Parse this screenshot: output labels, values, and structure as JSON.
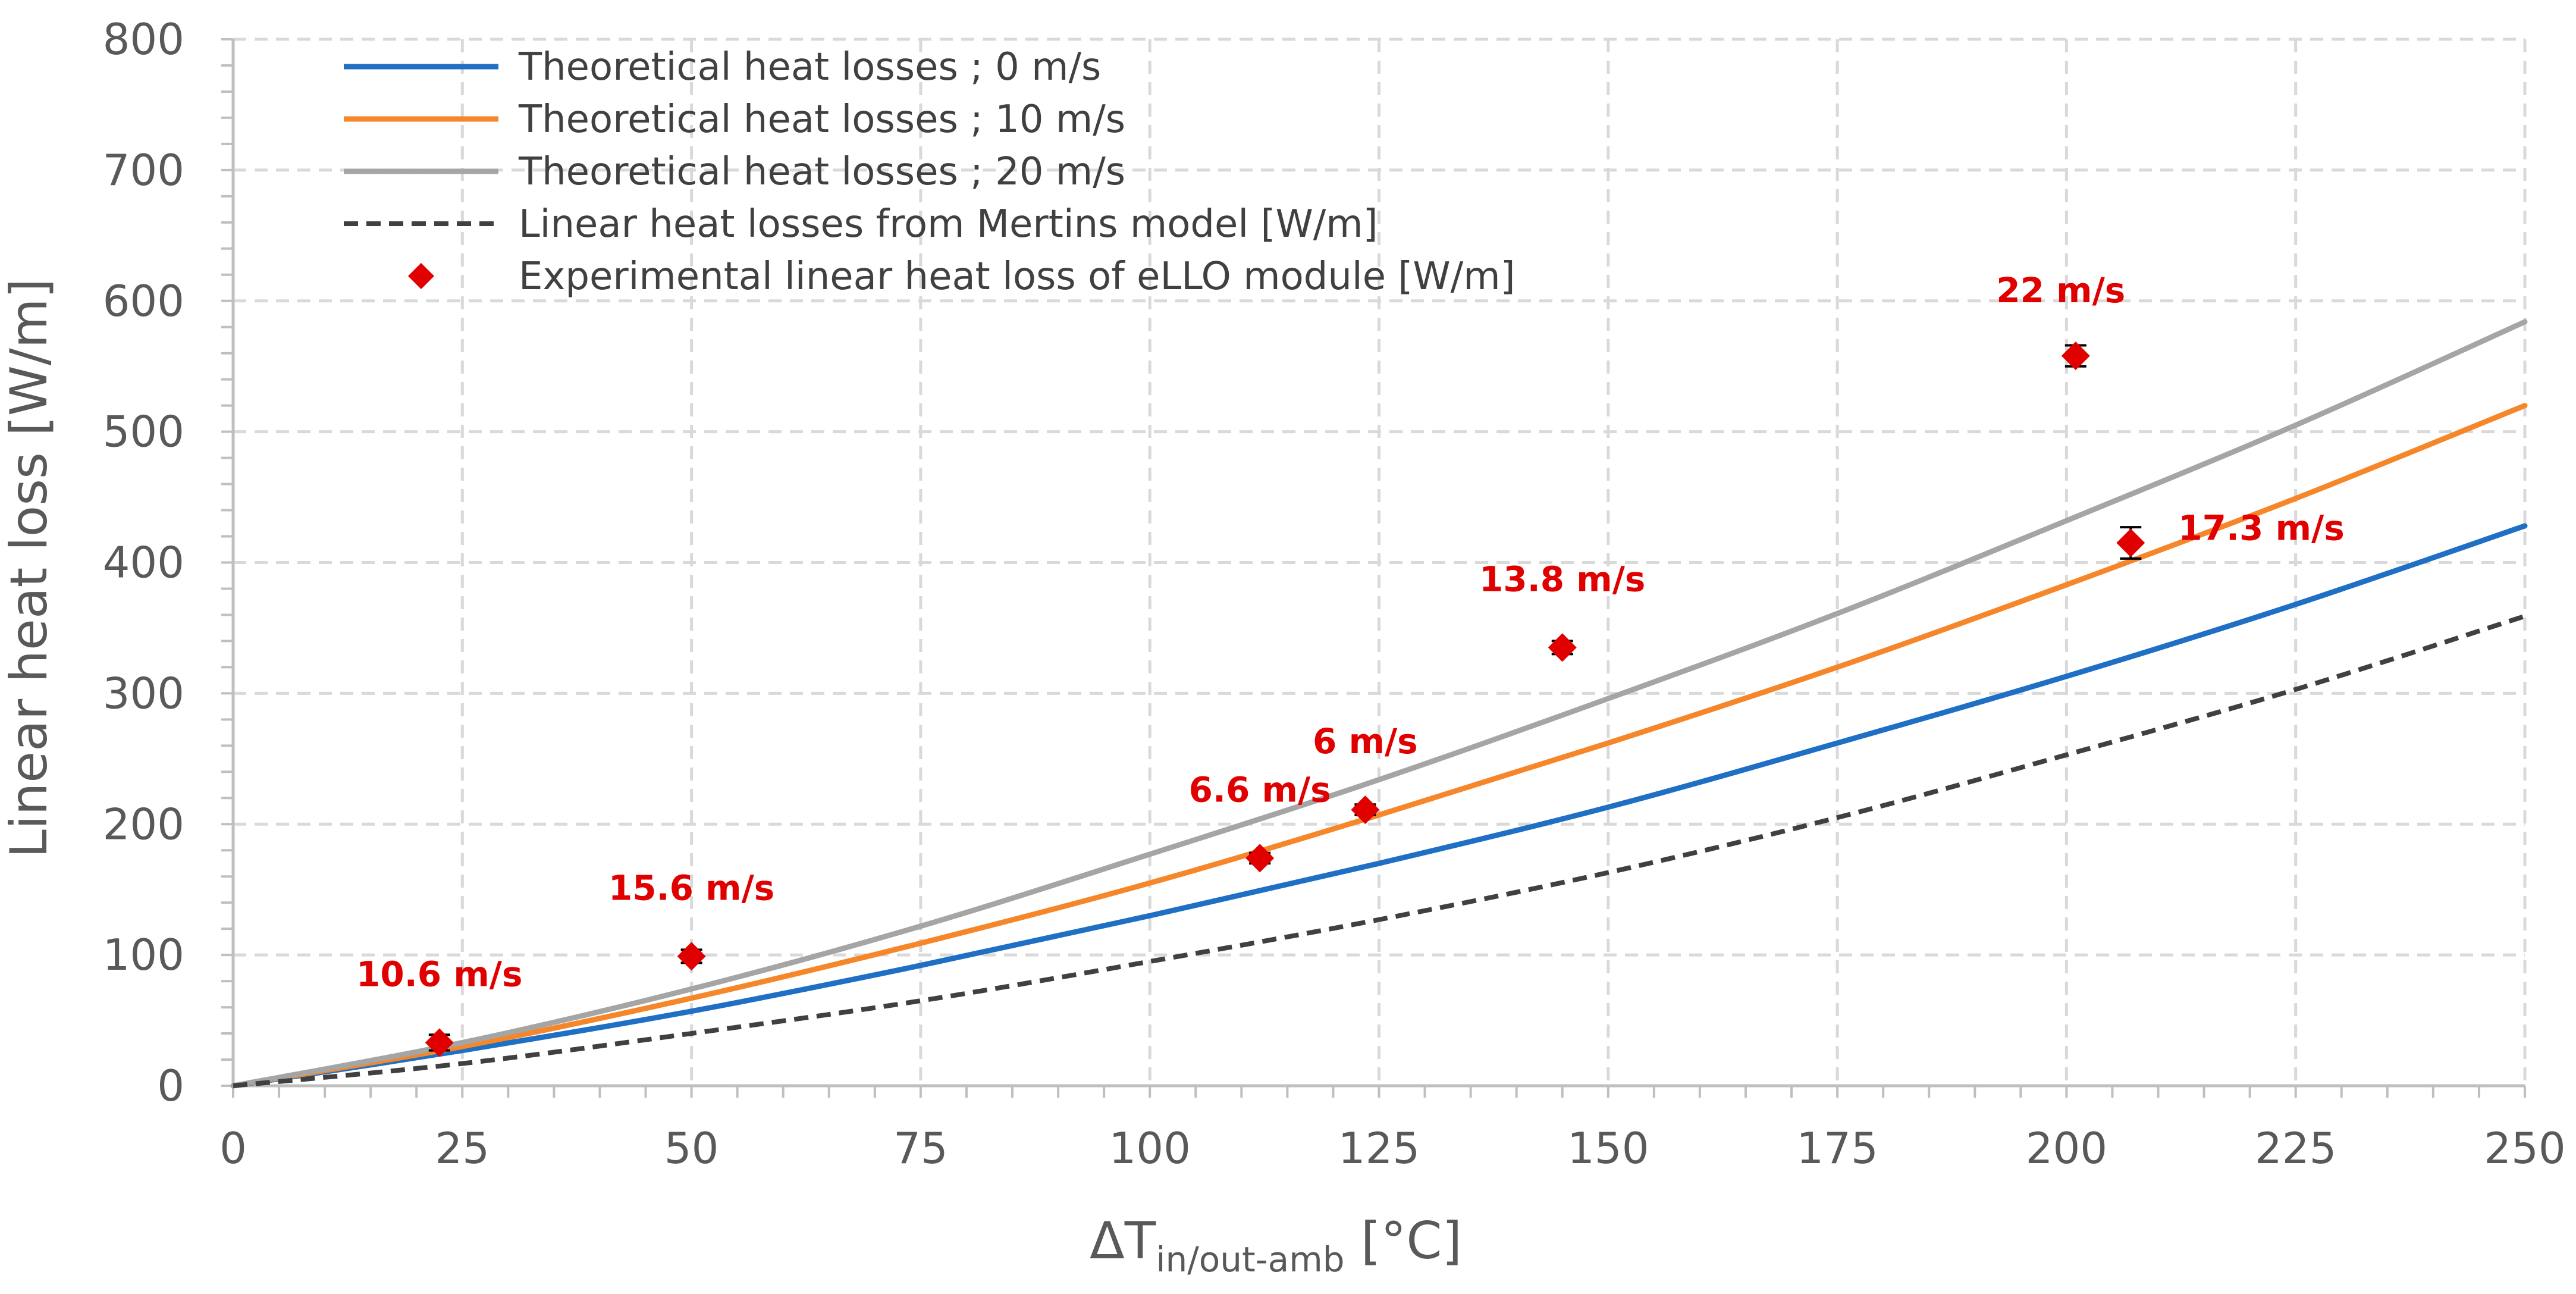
{
  "chart_data": {
    "type": "line",
    "title": "",
    "xlabel": {
      "main": "ΔT",
      "sub": "in/out-amb",
      "unit": " [°C]"
    },
    "ylabel": "Linear heat loss [W/m]",
    "xlim": [
      0,
      250
    ],
    "ylim": [
      0,
      800
    ],
    "x_ticks": [
      0,
      25,
      50,
      75,
      100,
      125,
      150,
      175,
      200,
      225,
      250
    ],
    "y_ticks": [
      0,
      100,
      200,
      300,
      400,
      500,
      600,
      700,
      800
    ],
    "grid": true,
    "legend_position": "top-left",
    "series": [
      {
        "name": "Theoretical heat losses ; 0 m/s",
        "color": "#1f6fc5",
        "style": "solid",
        "x": [
          0,
          25,
          50,
          75,
          100,
          125,
          150,
          175,
          200,
          225,
          250
        ],
        "y": [
          0,
          27,
          57,
          92,
          130,
          170,
          213,
          262,
          313,
          368,
          428
        ]
      },
      {
        "name": "Theoretical heat losses ; 10 m/s",
        "color": "#f5872a",
        "style": "solid",
        "x": [
          0,
          25,
          50,
          75,
          100,
          125,
          150,
          175,
          200,
          225,
          250
        ],
        "y": [
          0,
          30,
          67,
          109,
          155,
          207,
          262,
          320,
          383,
          449,
          520
        ]
      },
      {
        "name": "Theoretical heat losses ; 20 m/s",
        "color": "#a5a5a5",
        "style": "solid",
        "x": [
          0,
          25,
          50,
          75,
          100,
          125,
          150,
          175,
          200,
          225,
          250
        ],
        "y": [
          0,
          33,
          74,
          122,
          177,
          234,
          296,
          361,
          432,
          505,
          584
        ]
      },
      {
        "name": "Linear heat losses from Mertins model [W/m]",
        "color": "#404040",
        "style": "dashed",
        "x": [
          0,
          25,
          50,
          75,
          100,
          125,
          150,
          175,
          200,
          225,
          250
        ],
        "y": [
          0,
          17,
          40,
          65,
          95,
          127,
          163,
          205,
          253,
          303,
          359
        ]
      },
      {
        "name": "Experimental linear heat loss of eLLO module [W/m]",
        "color": "#e00000",
        "style": "marker",
        "points": [
          {
            "x": 22.5,
            "y": 33,
            "err": 6,
            "label": "10.6 m/s"
          },
          {
            "x": 50,
            "y": 99,
            "err": 5,
            "label": "15.6 m/s"
          },
          {
            "x": 112,
            "y": 174,
            "err": 4,
            "label": "6.6 m/s"
          },
          {
            "x": 123.5,
            "y": 211,
            "err": 4,
            "label": "6 m/s"
          },
          {
            "x": 145,
            "y": 335,
            "err": 5,
            "label": "13.8 m/s"
          },
          {
            "x": 201,
            "y": 558,
            "err": 8,
            "label": "22 m/s"
          },
          {
            "x": 207,
            "y": 415,
            "err": 12,
            "label": "17.3 m/s"
          }
        ]
      }
    ]
  }
}
